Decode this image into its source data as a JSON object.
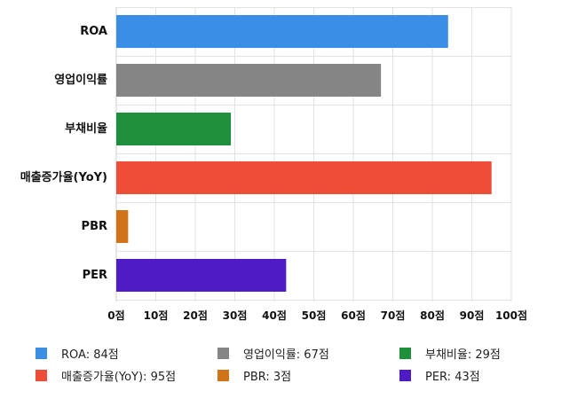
{
  "chart_data": {
    "type": "bar",
    "orientation": "horizontal",
    "categories": [
      "ROA",
      "영업이익률",
      "부채비율",
      "매출증가율(YoY)",
      "PBR",
      "PER"
    ],
    "values": [
      84,
      67,
      29,
      95,
      3,
      43
    ],
    "colors": [
      "#3a8ee6",
      "#858585",
      "#1e8f3a",
      "#ee4e38",
      "#d07319",
      "#4f1bc4"
    ],
    "xlim": [
      0,
      100
    ],
    "xticks": [
      0,
      10,
      20,
      30,
      40,
      50,
      60,
      70,
      80,
      90,
      100
    ],
    "tick_suffix": "점",
    "grid": true,
    "legend_position": "bottom",
    "legend": [
      "ROA: 84점",
      "매출증가율(YoY): 95점",
      "영업이익률: 67점",
      "PBR: 3점",
      "부채비율: 29점",
      "PER: 43점"
    ]
  }
}
